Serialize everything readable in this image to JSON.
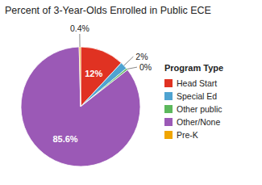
{
  "chart_data": {
    "type": "pie",
    "title": "Percent of 3-Year-Olds Enrolled in Public ECE",
    "categories": [
      "Head Start",
      "Special Ed",
      "Other public",
      "Other/None",
      "Pre-K"
    ],
    "values": [
      12.0,
      2.0,
      0.5,
      85.6,
      0.4
    ],
    "value_labels": [
      "12%",
      "2%",
      "0%",
      "85.6%",
      "0.4%"
    ],
    "colors": [
      "#e03222",
      "#4fa3d1",
      "#5cb85c",
      "#9b59b6",
      "#f0a500"
    ],
    "legend_title": "Program Type",
    "legend": "right",
    "data_labels": true
  }
}
